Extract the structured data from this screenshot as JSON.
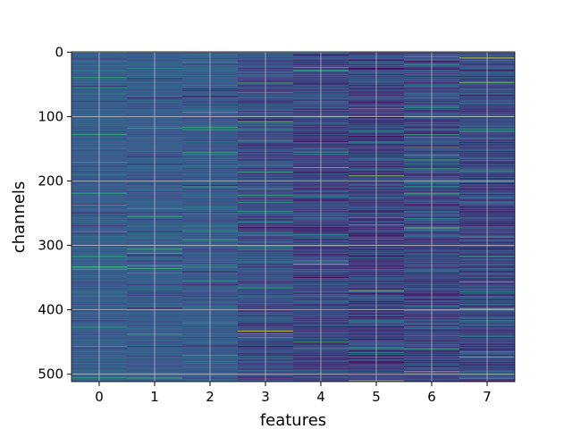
{
  "chart_data": {
    "type": "heatmap",
    "title": "",
    "xlabel": "features",
    "ylabel": "channels",
    "x_ticks": [
      "0",
      "1",
      "2",
      "3",
      "4",
      "5",
      "6",
      "7"
    ],
    "y_ticks": [
      "0",
      "100",
      "200",
      "300",
      "400",
      "500"
    ],
    "y_tick_values": [
      0,
      100,
      200,
      300,
      400,
      500
    ],
    "n_features": 8,
    "n_channels": 512,
    "ylim": [
      512,
      0
    ],
    "xlim": [
      -0.5,
      7.5
    ],
    "grid": true,
    "colormap": [
      "#440154",
      "#3b528b",
      "#21918c",
      "#5ec962",
      "#fde725"
    ],
    "column_base_level": [
      0.3,
      0.29,
      0.28,
      0.24,
      0.22,
      0.2,
      0.22,
      0.23
    ],
    "column_variance": [
      0.05,
      0.05,
      0.07,
      0.1,
      0.12,
      0.14,
      0.13,
      0.12
    ],
    "highlight_rows": [
      {
        "feature": 4,
        "channel": 0,
        "value": 0.55
      },
      {
        "feature": 7,
        "channel": 9,
        "value": 0.95
      },
      {
        "feature": 4,
        "channel": 24,
        "value": 0.7
      },
      {
        "feature": 7,
        "channel": 47,
        "value": 0.8
      },
      {
        "feature": 3,
        "channel": 108,
        "value": 0.75
      },
      {
        "feature": 5,
        "channel": 88,
        "value": 0.7
      },
      {
        "feature": 6,
        "channel": 148,
        "value": 0.75
      },
      {
        "feature": 4,
        "channel": 179,
        "value": 0.8
      },
      {
        "feature": 5,
        "channel": 192,
        "value": 0.8
      },
      {
        "feature": 6,
        "channel": 220,
        "value": 0.7
      },
      {
        "feature": 6,
        "channel": 273,
        "value": 0.85
      },
      {
        "feature": 7,
        "channel": 287,
        "value": 0.7
      },
      {
        "feature": 4,
        "channel": 329,
        "value": 0.85
      },
      {
        "feature": 5,
        "channel": 370,
        "value": 0.8
      },
      {
        "feature": 7,
        "channel": 398,
        "value": 0.8
      },
      {
        "feature": 3,
        "channel": 433,
        "value": 0.95
      },
      {
        "feature": 7,
        "channel": 473,
        "value": 0.75
      },
      {
        "feature": 6,
        "channel": 496,
        "value": 0.95
      },
      {
        "feature": 5,
        "channel": 510,
        "value": 0.85
      }
    ]
  }
}
